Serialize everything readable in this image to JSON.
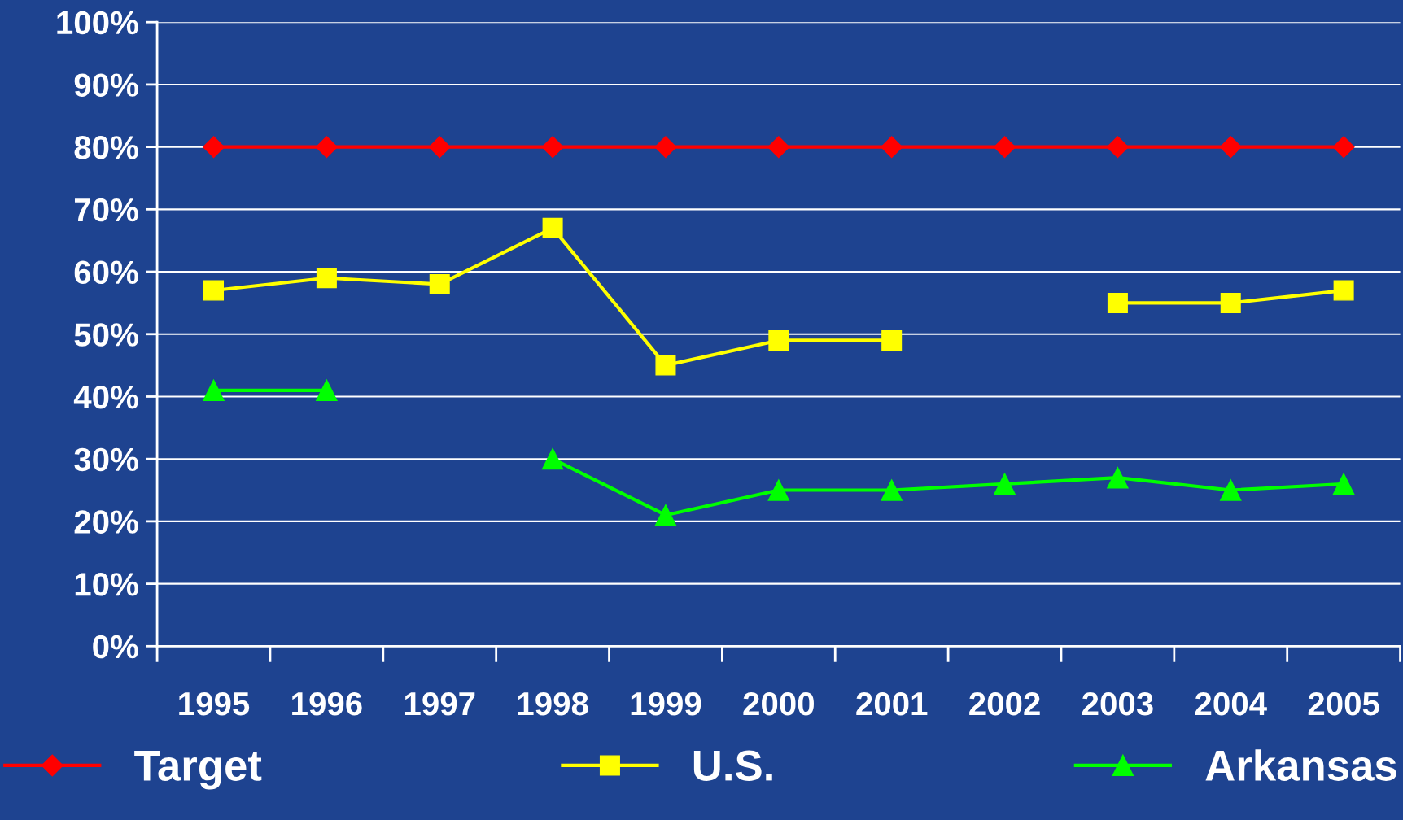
{
  "chart_data": {
    "type": "line",
    "categories": [
      "1995",
      "1996",
      "1997",
      "1998",
      "1999",
      "2000",
      "2001",
      "2002",
      "2003",
      "2004",
      "2005"
    ],
    "series": [
      {
        "name": "Target",
        "color": "#ff0000",
        "marker": "diamond",
        "values": [
          80,
          80,
          80,
          80,
          80,
          80,
          80,
          80,
          80,
          80,
          80
        ]
      },
      {
        "name": "U.S.",
        "color": "#ffff00",
        "marker": "square",
        "values": [
          57,
          59,
          58,
          67,
          45,
          49,
          49,
          null,
          55,
          55,
          57
        ]
      },
      {
        "name": "Arkansas",
        "color": "#00ff00",
        "marker": "triangle",
        "values": [
          41,
          41,
          null,
          30,
          21,
          25,
          25,
          26,
          27,
          25,
          26
        ]
      }
    ],
    "ylim": [
      0,
      100
    ],
    "yticks": [
      {
        "value": 0,
        "label": "0%"
      },
      {
        "value": 10,
        "label": "10%"
      },
      {
        "value": 20,
        "label": "20%"
      },
      {
        "value": 30,
        "label": "30%"
      },
      {
        "value": 40,
        "label": "40%"
      },
      {
        "value": 50,
        "label": "50%"
      },
      {
        "value": 60,
        "label": "60%"
      },
      {
        "value": 70,
        "label": "70%"
      },
      {
        "value": 80,
        "label": "80%"
      },
      {
        "value": 90,
        "label": "90%"
      },
      {
        "value": 100,
        "label": "100%"
      }
    ],
    "grid": "y",
    "legend": "bottom",
    "line_style": "solid"
  }
}
